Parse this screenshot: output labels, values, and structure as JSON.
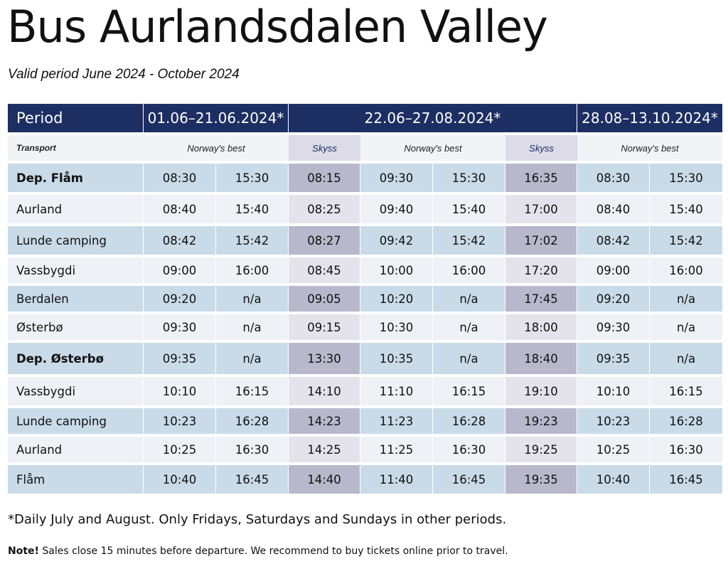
{
  "title": "Bus Aurlandsdalen Valley",
  "subtitle": "Valid period June 2024 - October 2024",
  "table": {
    "period_label": "Period",
    "periods": [
      "01.06–21.06.2024*",
      "22.06–27.08.2024*",
      "28.08–13.10.2024*"
    ],
    "transport_label": "Transport",
    "operators": [
      "Norway's best",
      "Skyss",
      "Norway's best",
      "Skyss",
      "Norway's best"
    ],
    "rows": [
      {
        "stop": "Dep. Flåm",
        "times": [
          "08:30",
          "15:30",
          "08:15",
          "09:30",
          "15:30",
          "16:35",
          "08:30",
          "15:30"
        ]
      },
      {
        "stop": "Aurland",
        "times": [
          "08:40",
          "15:40",
          "08:25",
          "09:40",
          "15:40",
          "17:00",
          "08:40",
          "15:40"
        ]
      },
      {
        "stop": "Lunde camping",
        "times": [
          "08:42",
          "15:42",
          "08:27",
          "09:42",
          "15:42",
          "17:02",
          "08:42",
          "15:42"
        ]
      },
      {
        "stop": "Vassbygdi",
        "times": [
          "09:00",
          "16:00",
          "08:45",
          "10:00",
          "16:00",
          "17:20",
          "09:00",
          "16:00"
        ]
      },
      {
        "stop": "Berdalen",
        "times": [
          "09:20",
          "n/a",
          "09:05",
          "10:20",
          "n/a",
          "17:45",
          "09:20",
          "n/a"
        ]
      },
      {
        "stop": "Østerbø",
        "times": [
          "09:30",
          "n/a",
          "09:15",
          "10:30",
          "n/a",
          "18:00",
          "09:30",
          "n/a"
        ]
      },
      {
        "stop": "Dep. Østerbø",
        "times": [
          "09:35",
          "n/a",
          "13:30",
          "10:35",
          "n/a",
          "18:40",
          "09:35",
          "n/a"
        ]
      },
      {
        "stop": "Vassbygdi",
        "times": [
          "10:10",
          "16:15",
          "14:10",
          "11:10",
          "16:15",
          "19:10",
          "10:10",
          "16:15"
        ]
      },
      {
        "stop": "Lunde camping",
        "times": [
          "10:23",
          "16:28",
          "14:23",
          "11:23",
          "16:28",
          "19:23",
          "10:23",
          "16:28"
        ]
      },
      {
        "stop": "Aurland",
        "times": [
          "10:25",
          "16:30",
          "14:25",
          "11:25",
          "16:30",
          "19:25",
          "10:25",
          "16:30"
        ]
      },
      {
        "stop": "Flåm",
        "times": [
          "10:40",
          "16:45",
          "14:40",
          "11:40",
          "16:45",
          "19:35",
          "10:40",
          "16:45"
        ]
      }
    ]
  },
  "footnote": "*Daily July and August. Only Fridays, Saturdays and Sundays in other periods.",
  "note": {
    "label": "Note!",
    "text": " Sales close 15 minutes before departure. We recommend to buy tickets online prior to travel."
  },
  "colors": {
    "header_bg": "#1d2e63",
    "row_blue": "#c9dbe8",
    "row_light": "#eef2f7",
    "skyss_dark": "#b9b7cc",
    "skyss_light": "#e4e3ec"
  }
}
